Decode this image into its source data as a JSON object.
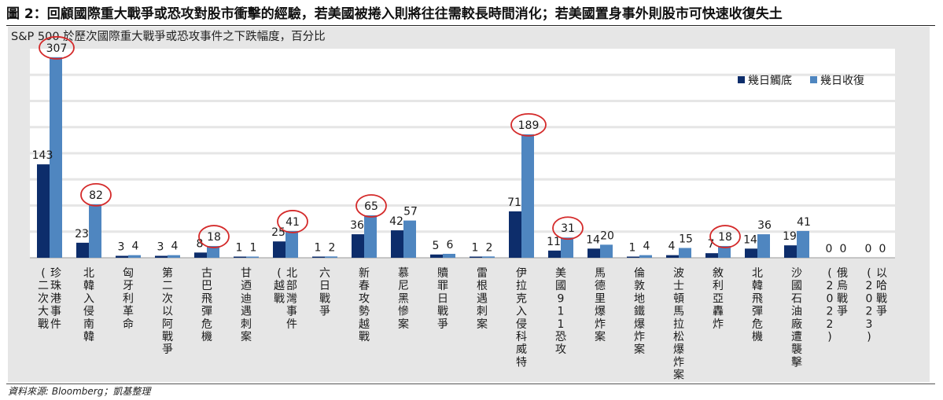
{
  "figure": {
    "title": "圖 2：回顧國際重大戰爭或恐攻對股市衝擊的經驗，若美國被捲入則將往往需較長時間消化；若美國置身事外則股市可快速收復失土",
    "source": "資料來源: Bloomberg；凱基整理"
  },
  "chart_data": {
    "type": "bar",
    "title": "S&P 500 於歷次國際重大戰爭或恐攻事件之下跌幅度，百分比",
    "categories": [
      "珍珠港事件（二次大戰）",
      "北韓入侵南韓",
      "匈牙利革命",
      "第二次以阿戰爭",
      "古巴飛彈危機",
      "甘迺迪遇刺案",
      "北部灣事件（越戰）",
      "六日戰爭",
      "新春攻勢越戰",
      "慕尼黑慘案",
      "贖罪日戰爭",
      "雷根遇刺案",
      "伊拉克入侵科威特",
      "美國911恐攻",
      "馬德里爆炸案",
      "倫敦地鐵爆炸案",
      "波士頓馬拉松爆炸案",
      "敘利亞轟炸",
      "北韓飛彈危機",
      "沙國石油廠遭襲擊",
      "俄烏戰爭(2022)",
      "以哈戰爭(2023)"
    ],
    "category_lines": [
      [
        "珍珠港事件",
        "(二次大戰"
      ],
      [
        "北韓入侵南韓"
      ],
      [
        "匈牙利革命"
      ],
      [
        "第二次以阿戰爭"
      ],
      [
        "古巴飛彈危機"
      ],
      [
        "甘迺迪遇刺案"
      ],
      [
        "北部灣事件",
        "(越戰"
      ],
      [
        "六日戰爭"
      ],
      [
        "新春攻勢越戰"
      ],
      [
        "慕尼黑慘案"
      ],
      [
        "贖罪日戰爭"
      ],
      [
        "雷根遇刺案"
      ],
      [
        "伊拉克入侵科威特"
      ],
      [
        "美國911恐攻"
      ],
      [
        "馬德里爆炸案"
      ],
      [
        "倫敦地鐵爆炸案"
      ],
      [
        "波士頓馬拉松爆炸案"
      ],
      [
        "敘利亞轟炸"
      ],
      [
        "北韓飛彈危機"
      ],
      [
        "沙國石油廠遭襲擊"
      ],
      [
        "俄烏戰爭",
        "(2022)"
      ],
      [
        "以哈戰爭",
        "(2023)"
      ]
    ],
    "series": [
      {
        "name": "幾日觸底",
        "color": "#0d2d6b",
        "values": [
          143,
          23,
          3,
          3,
          8,
          1,
          25,
          1,
          36,
          42,
          5,
          1,
          71,
          11,
          14,
          1,
          4,
          7,
          14,
          19,
          0,
          0
        ]
      },
      {
        "name": "幾日收復",
        "color": "#4f86c0",
        "values": [
          307,
          82,
          4,
          4,
          18,
          1,
          41,
          2,
          65,
          57,
          6,
          2,
          189,
          31,
          20,
          4,
          15,
          18,
          36,
          41,
          0,
          0
        ]
      }
    ],
    "highlighted_recovery_indices": [
      0,
      1,
      4,
      6,
      8,
      12,
      13,
      17
    ],
    "highlight_color": "#d42a2a",
    "ylim": [
      0,
      320
    ],
    "grid": true,
    "legend_position": "top-right"
  }
}
